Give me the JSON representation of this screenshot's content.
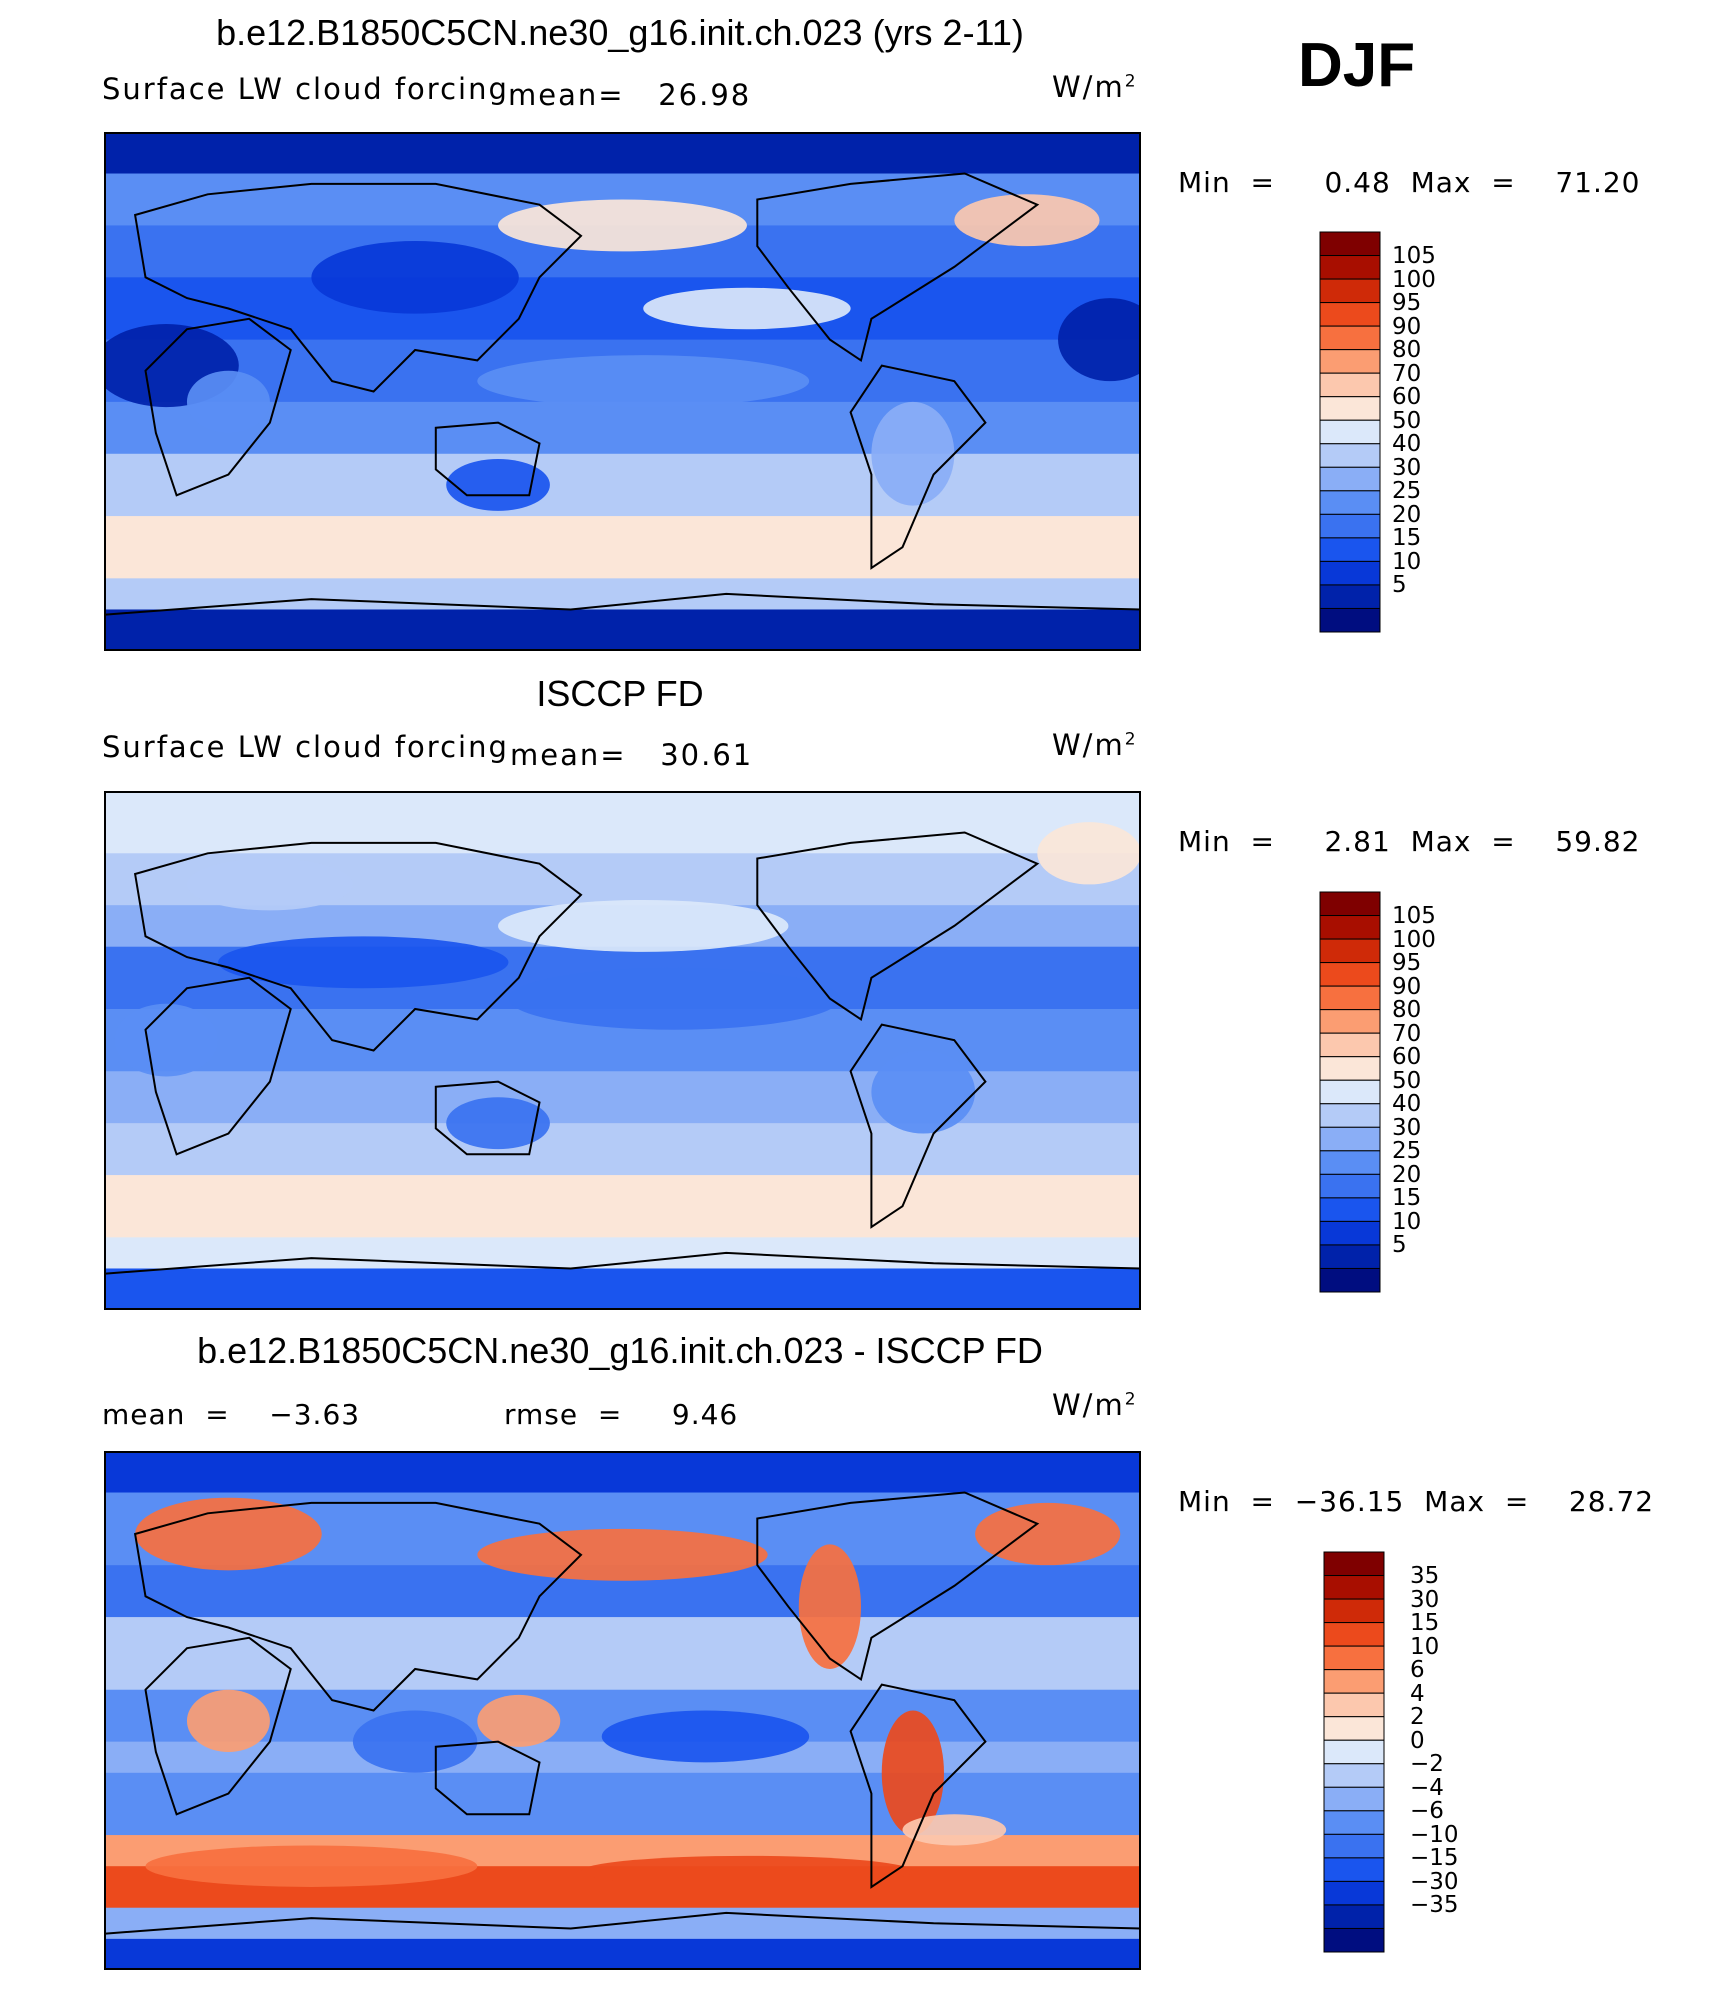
{
  "season": "DJF",
  "units_text": "W/m",
  "units_exp": "2",
  "panels": [
    {
      "title": "b.e12.B1850C5CN.ne30_g16.init.ch.023 (yrs 2-11)",
      "variable": "Surface LW cloud forcing",
      "mean_text": "mean=   26.98",
      "min_text": "Min  =     0.48  Max  =    71.20"
    },
    {
      "title": "ISCCP FD",
      "variable": "Surface LW cloud forcing",
      "mean_text": "mean=   30.61",
      "min_text": "Min  =     2.81  Max  =    59.82"
    },
    {
      "title": "b.e12.B1850C5CN.ne30_g16.init.ch.023 - ISCCP FD",
      "mean_text": "mean  =    −3.63",
      "rmse_text": "rmse  =     9.46",
      "min_text": "Min  =  −36.15  Max  =    28.72"
    }
  ],
  "chart_data": [
    {
      "type": "heatmap",
      "title": "b.e12.B1850C5CN.ne30_g16.init.ch.023 (yrs 2-11)",
      "variable": "Surface LW cloud forcing",
      "units": "W/m2",
      "mean": 26.98,
      "min": 0.48,
      "max": 71.2,
      "colorbar_levels": [
        5,
        10,
        15,
        20,
        25,
        30,
        40,
        50,
        60,
        70,
        80,
        90,
        95,
        100,
        105
      ],
      "colorbar_labels": [
        "105",
        "100",
        "95",
        "90",
        "80",
        "70",
        "60",
        "50",
        "40",
        "30",
        "25",
        "20",
        "15",
        "10",
        "5"
      ],
      "colorbar_colors": [
        "#000d80",
        "#0022aa",
        "#0838d8",
        "#1a55ee",
        "#3a72f0",
        "#5a8ef4",
        "#8aaef6",
        "#b4cbf7",
        "#dbe8fa",
        "#fbe6d8",
        "#fcc8ae",
        "#fb9d72",
        "#f7703f",
        "#ec4a1c",
        "#cf2a08",
        "#a80e00",
        "#7f0000"
      ]
    },
    {
      "type": "heatmap",
      "title": "ISCCP FD",
      "variable": "Surface LW cloud forcing",
      "units": "W/m2",
      "mean": 30.61,
      "min": 2.81,
      "max": 59.82,
      "colorbar_levels": [
        5,
        10,
        15,
        20,
        25,
        30,
        40,
        50,
        60,
        70,
        80,
        90,
        95,
        100,
        105
      ],
      "colorbar_labels": [
        "105",
        "100",
        "95",
        "90",
        "80",
        "70",
        "60",
        "50",
        "40",
        "30",
        "25",
        "20",
        "15",
        "10",
        "5"
      ],
      "colorbar_colors": [
        "#000d80",
        "#0022aa",
        "#0838d8",
        "#1a55ee",
        "#3a72f0",
        "#5a8ef4",
        "#8aaef6",
        "#b4cbf7",
        "#dbe8fa",
        "#fbe6d8",
        "#fcc8ae",
        "#fb9d72",
        "#f7703f",
        "#ec4a1c",
        "#cf2a08",
        "#a80e00",
        "#7f0000"
      ]
    },
    {
      "type": "heatmap",
      "title": "b.e12.B1850C5CN.ne30_g16.init.ch.023 - ISCCP FD",
      "units": "W/m2",
      "mean": -3.63,
      "rmse": 9.46,
      "min": -36.15,
      "max": 28.72,
      "colorbar_levels": [
        -35,
        -30,
        -15,
        -10,
        -6,
        -4,
        -2,
        0,
        2,
        4,
        6,
        10,
        15,
        30,
        35
      ],
      "colorbar_labels": [
        "35",
        "30",
        "15",
        "10",
        "6",
        "4",
        "2",
        "0",
        "−2",
        "−4",
        "−6",
        "−10",
        "−15",
        "−30",
        "−35"
      ],
      "colorbar_colors": [
        "#000d80",
        "#0022aa",
        "#0838d8",
        "#1a55ee",
        "#3a72f0",
        "#5a8ef4",
        "#8aaef6",
        "#b4cbf7",
        "#dbe8fa",
        "#fbe6d8",
        "#fcc8ae",
        "#fb9d72",
        "#f7703f",
        "#ec4a1c",
        "#cf2a08",
        "#a80e00",
        "#7f0000"
      ]
    }
  ]
}
